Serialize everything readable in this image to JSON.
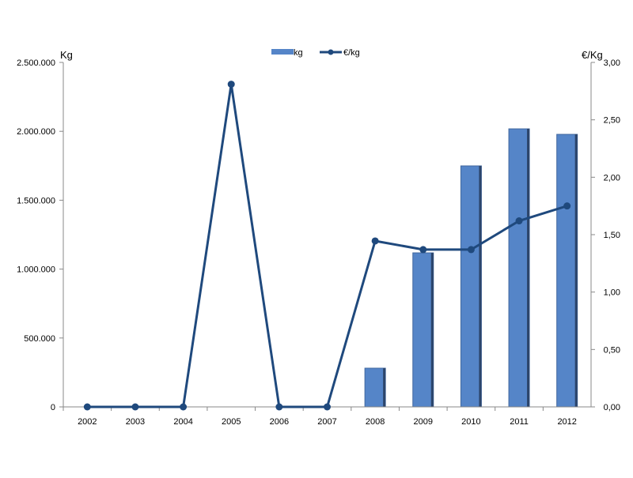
{
  "chart_data": {
    "type": "bar",
    "categories": [
      "2002",
      "2003",
      "2004",
      "2005",
      "2006",
      "2007",
      "2008",
      "2009",
      "2010",
      "2011",
      "2012"
    ],
    "series": [
      {
        "name": "kg",
        "type": "bar",
        "axis": "left",
        "values": [
          0,
          0,
          0,
          0,
          0,
          0,
          281000,
          1118000,
          1749000,
          2018000,
          1978000
        ]
      },
      {
        "name": "€/kg",
        "type": "line",
        "axis": "right",
        "values": [
          0,
          0,
          0,
          2.81,
          0,
          0,
          1.445,
          1.37,
          1.37,
          1.62,
          1.75
        ]
      }
    ],
    "ylabel": "Kg",
    "y2label": "€/Kg",
    "ylim": [
      0,
      2500000
    ],
    "y2lim": [
      0,
      3
    ],
    "yticks": [
      "0",
      "500.000",
      "1.000.000",
      "1.500.000",
      "2.000.000",
      "2.500.000"
    ],
    "y2ticks": [
      "0,00",
      "0,50",
      "1,00",
      "1,50",
      "2,00",
      "2,50",
      "3,00"
    ],
    "legend_position": "top-center",
    "grid": false,
    "colors": {
      "bar": "#5585c8",
      "line": "#1f497d"
    }
  }
}
